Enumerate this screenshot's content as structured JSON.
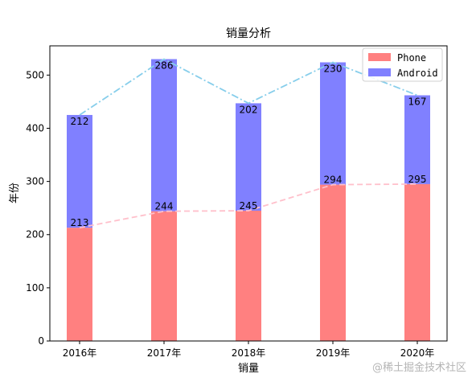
{
  "chart_data": {
    "type": "bar",
    "title": "销量分析",
    "xlabel": "销量",
    "ylabel": "年份",
    "categories": [
      "2016年",
      "2017年",
      "2018年",
      "2019年",
      "2020年"
    ],
    "ylim": [
      0,
      555
    ],
    "yticks": [
      0,
      100,
      200,
      300,
      400,
      500
    ],
    "stacked": true,
    "series": [
      {
        "name": "Phone",
        "values": [
          213,
          244,
          245,
          294,
          295
        ],
        "color": "#ff8080",
        "line_color": "#ffc0cb",
        "line_style": "dashed"
      },
      {
        "name": "Android",
        "values": [
          212,
          286,
          202,
          230,
          167
        ],
        "color": "#8080ff",
        "line_color": "#87ceeb",
        "line_style": "dashdot"
      }
    ],
    "legend_position": "top-right",
    "grid": false
  },
  "watermark": "@稀土掘金技术社区"
}
